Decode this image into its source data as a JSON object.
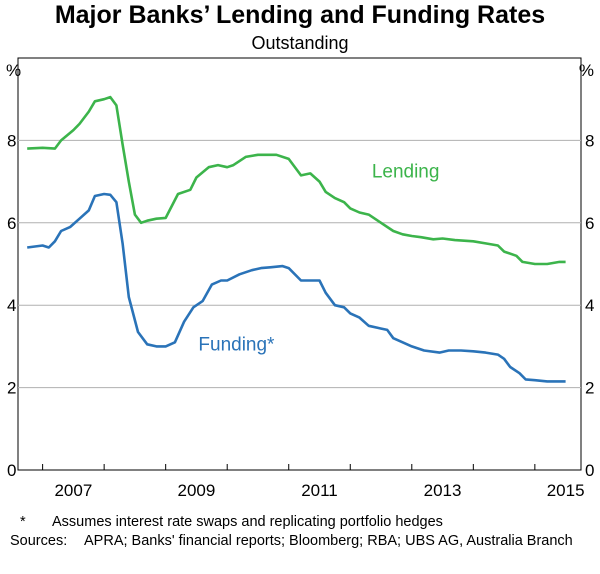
{
  "chart_data": {
    "type": "line",
    "title": "Major Banks’ Lending and Funding Rates",
    "subtitle": "Outstanding",
    "y_unit_left": "%",
    "y_unit_right": "%",
    "ylim": [
      0,
      10
    ],
    "y_ticks": [
      "0",
      "2",
      "4",
      "6",
      "8"
    ],
    "x_ticks": [
      "2007",
      "2009",
      "2011",
      "2013",
      "2015"
    ],
    "xlim": [
      2006.6,
      2015.75
    ],
    "grid": true,
    "series": [
      {
        "name": "Lending",
        "color": "#3cb44b",
        "x": [
          2006.75,
          2007.0,
          2007.2,
          2007.3,
          2007.5,
          2007.6,
          2007.75,
          2007.85,
          2008.0,
          2008.1,
          2008.2,
          2008.3,
          2008.4,
          2008.5,
          2008.6,
          2008.7,
          2008.85,
          2009.0,
          2009.2,
          2009.4,
          2009.5,
          2009.7,
          2009.85,
          2010.0,
          2010.1,
          2010.3,
          2010.5,
          2010.55,
          2010.8,
          2011.0,
          2011.2,
          2011.35,
          2011.5,
          2011.6,
          2011.75,
          2011.9,
          2012.0,
          2012.15,
          2012.3,
          2012.5,
          2012.7,
          2012.85,
          2013.0,
          2013.15,
          2013.35,
          2013.5,
          2013.7,
          2014.0,
          2014.2,
          2014.4,
          2014.5,
          2014.7,
          2014.8,
          2015.0,
          2015.1,
          2015.2,
          2015.4,
          2015.5
        ],
        "values": [
          7.8,
          7.82,
          7.8,
          8.0,
          8.25,
          8.4,
          8.7,
          8.95,
          9.0,
          9.05,
          8.85,
          7.9,
          7.0,
          6.2,
          6.0,
          6.05,
          6.1,
          6.12,
          6.7,
          6.8,
          7.1,
          7.35,
          7.4,
          7.35,
          7.4,
          7.6,
          7.65,
          7.65,
          7.65,
          7.55,
          7.15,
          7.2,
          7.0,
          6.75,
          6.6,
          6.5,
          6.35,
          6.25,
          6.2,
          6.0,
          5.8,
          5.72,
          5.68,
          5.65,
          5.6,
          5.62,
          5.58,
          5.55,
          5.5,
          5.45,
          5.3,
          5.2,
          5.05,
          5.0,
          5.0,
          5.0,
          5.05,
          5.05
        ]
      },
      {
        "name": "Funding*",
        "color": "#2a73b8",
        "x": [
          2006.75,
          2007.0,
          2007.1,
          2007.2,
          2007.3,
          2007.45,
          2007.6,
          2007.75,
          2007.85,
          2008.0,
          2008.1,
          2008.2,
          2008.3,
          2008.4,
          2008.55,
          2008.7,
          2008.85,
          2009.0,
          2009.15,
          2009.3,
          2009.45,
          2009.6,
          2009.75,
          2009.9,
          2010.0,
          2010.2,
          2010.4,
          2010.55,
          2010.7,
          2010.9,
          2011.0,
          2011.2,
          2011.35,
          2011.5,
          2011.6,
          2011.75,
          2011.9,
          2012.0,
          2012.15,
          2012.3,
          2012.45,
          2012.6,
          2012.7,
          2012.85,
          2013.0,
          2013.2,
          2013.45,
          2013.6,
          2013.8,
          2014.0,
          2014.2,
          2014.4,
          2014.5,
          2014.6,
          2014.75,
          2014.85,
          2015.0,
          2015.2,
          2015.5
        ],
        "values": [
          5.4,
          5.45,
          5.4,
          5.55,
          5.8,
          5.9,
          6.1,
          6.3,
          6.65,
          6.7,
          6.68,
          6.5,
          5.5,
          4.2,
          3.35,
          3.05,
          3.0,
          3.0,
          3.1,
          3.6,
          3.95,
          4.1,
          4.5,
          4.6,
          4.6,
          4.75,
          4.85,
          4.9,
          4.92,
          4.95,
          4.9,
          4.6,
          4.6,
          4.6,
          4.3,
          4.0,
          3.95,
          3.8,
          3.7,
          3.5,
          3.45,
          3.4,
          3.2,
          3.1,
          3.0,
          2.9,
          2.85,
          2.9,
          2.9,
          2.88,
          2.85,
          2.8,
          2.7,
          2.5,
          2.35,
          2.2,
          2.18,
          2.15,
          2.15
        ]
      }
    ]
  },
  "footnote": {
    "marker": "*",
    "text": "Assumes interest rate swaps and replicating portfolio hedges"
  },
  "sources": {
    "label": "Sources:",
    "text": "APRA; Banks' financial reports; Bloomberg; RBA; UBS AG, Australia Branch"
  }
}
